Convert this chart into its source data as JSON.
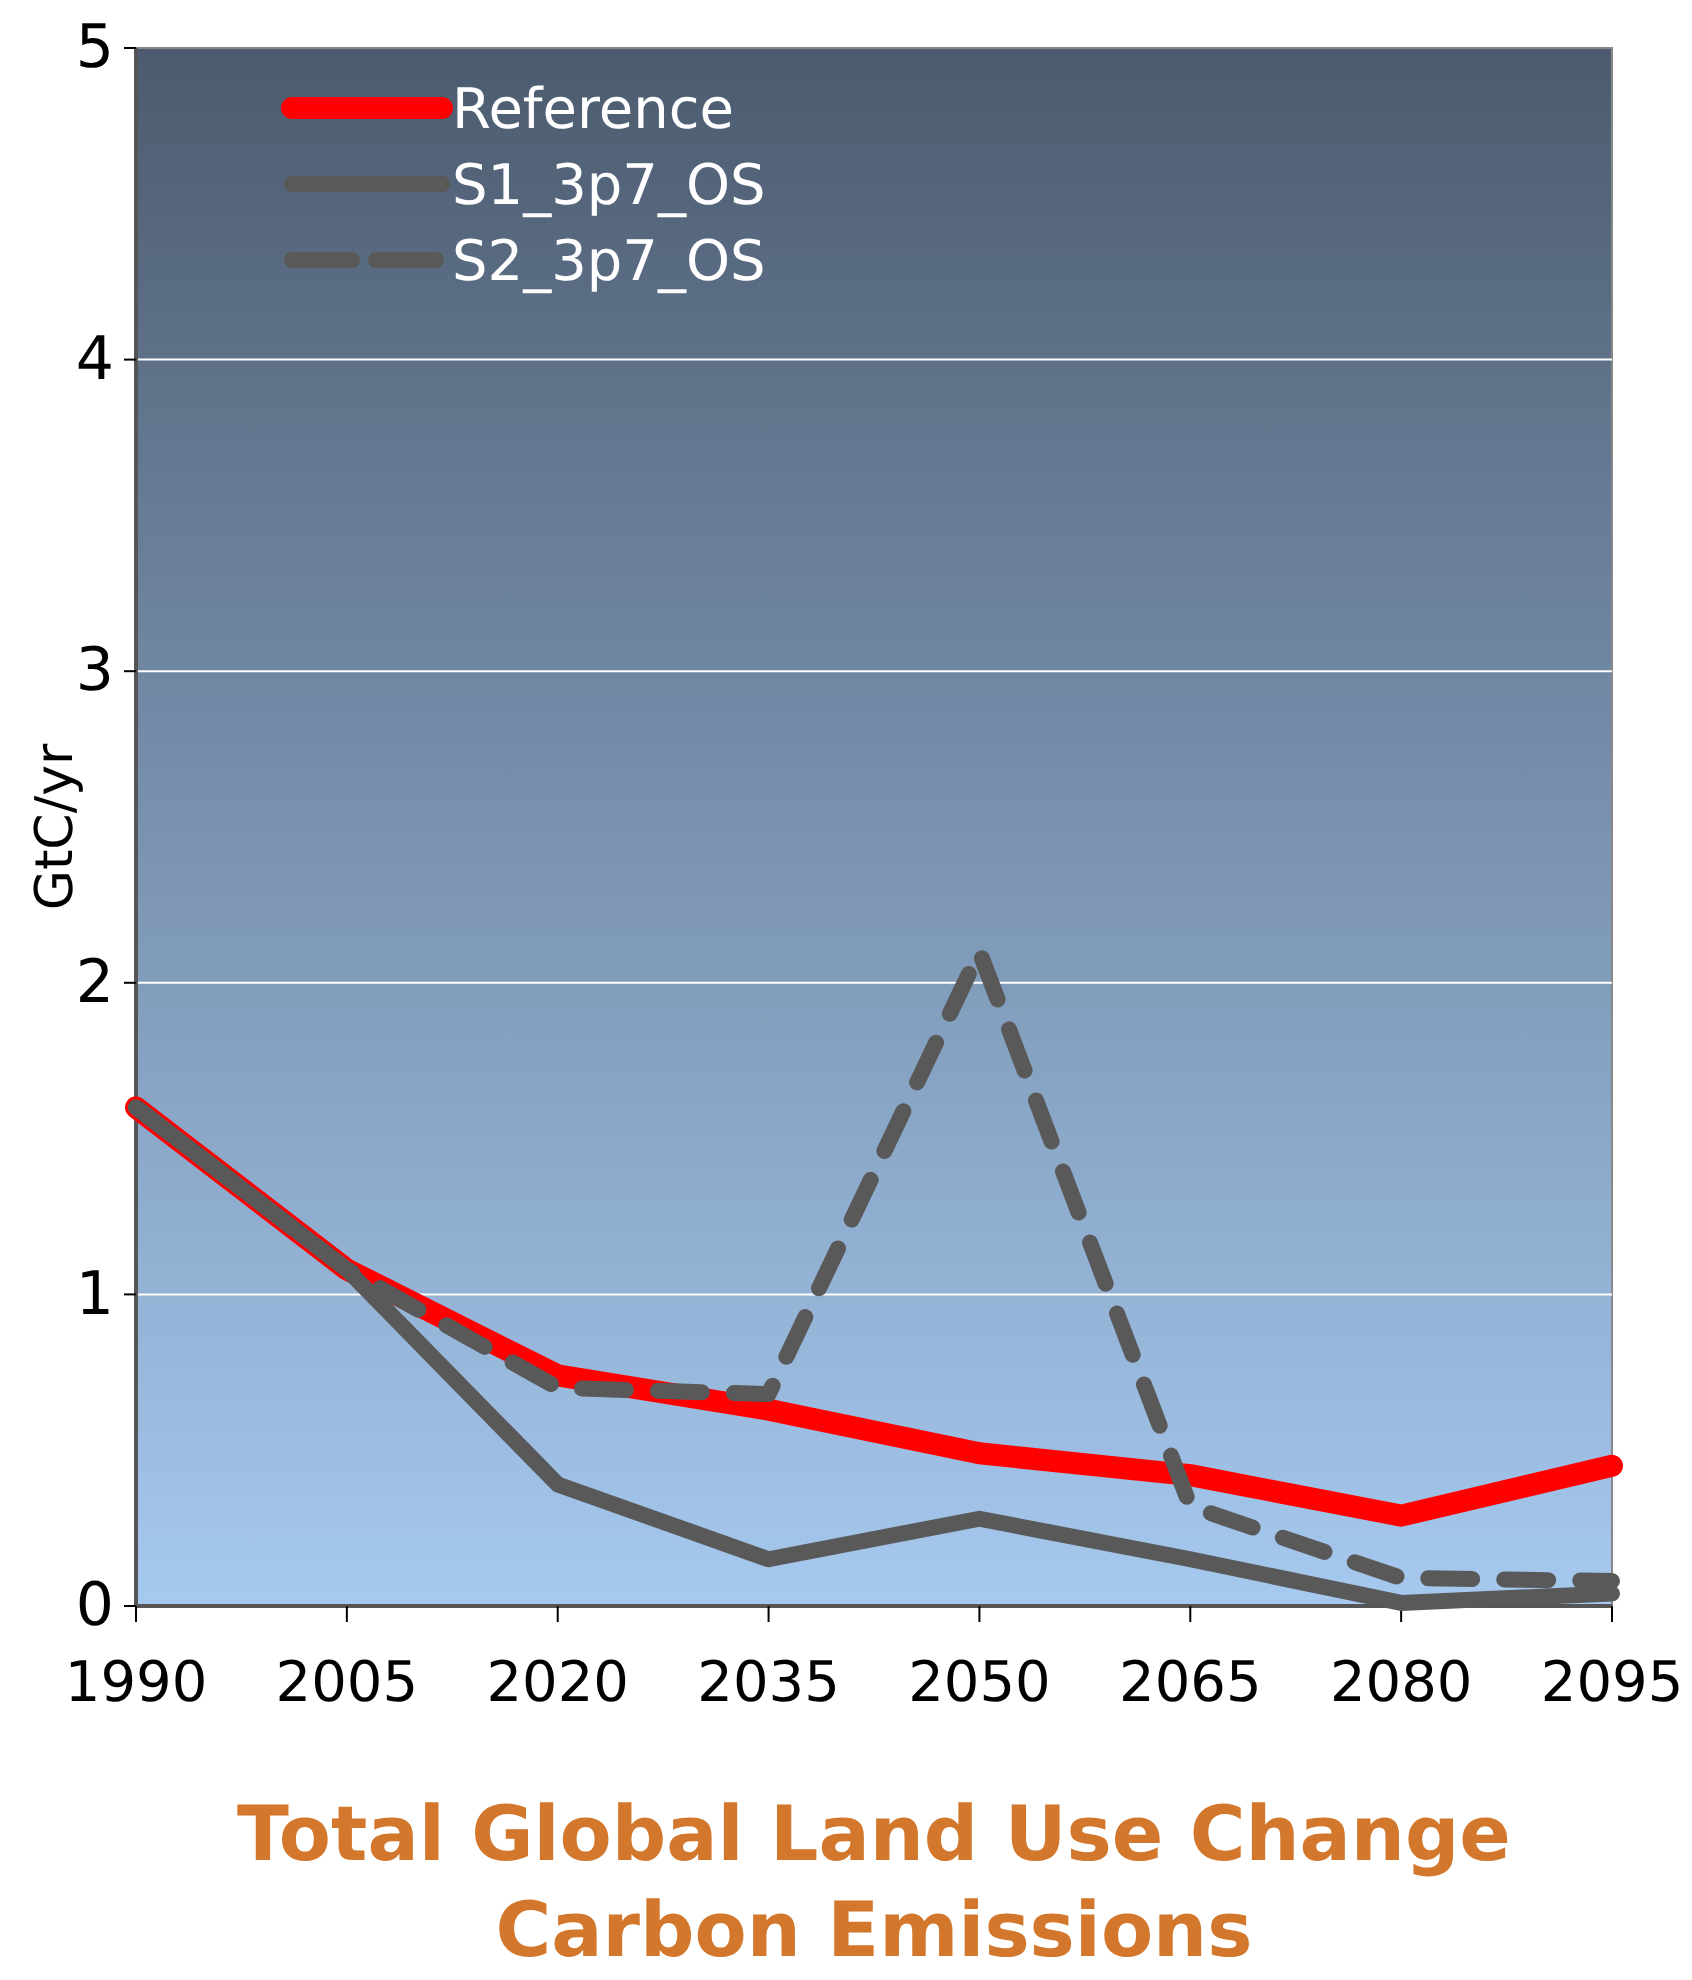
{
  "chart_data": {
    "type": "line",
    "title": "Total Global Land Use Change Carbon Emissions",
    "ylabel": "GtC/yr",
    "x": [
      1990,
      2005,
      2020,
      2035,
      2050,
      2065,
      2080,
      2095
    ],
    "xlim": [
      1990,
      2095
    ],
    "xticks": [
      1990,
      2005,
      2020,
      2035,
      2050,
      2065,
      2080,
      2095
    ],
    "ylim": [
      0,
      5
    ],
    "yticks": [
      0,
      1,
      2,
      3,
      4,
      5
    ],
    "grid": "y",
    "legend": "top left",
    "marker": "none",
    "series": [
      {
        "name": "Reference",
        "color": "#ff0000",
        "line_style": "solid",
        "values": [
          1.6,
          1.08,
          0.74,
          0.63,
          0.49,
          0.42,
          0.29,
          0.45
        ]
      },
      {
        "name": "S1_3p7_OS",
        "color": "#595959",
        "line_style": "solid",
        "values": [
          1.6,
          1.08,
          0.39,
          0.15,
          0.28,
          0.15,
          0.01,
          0.04
        ]
      },
      {
        "name": "S2_3p7_OS",
        "color": "#595959",
        "line_style": "dashed",
        "values": [
          1.6,
          1.08,
          0.7,
          0.68,
          2.1,
          0.32,
          0.09,
          0.08
        ]
      }
    ]
  }
}
